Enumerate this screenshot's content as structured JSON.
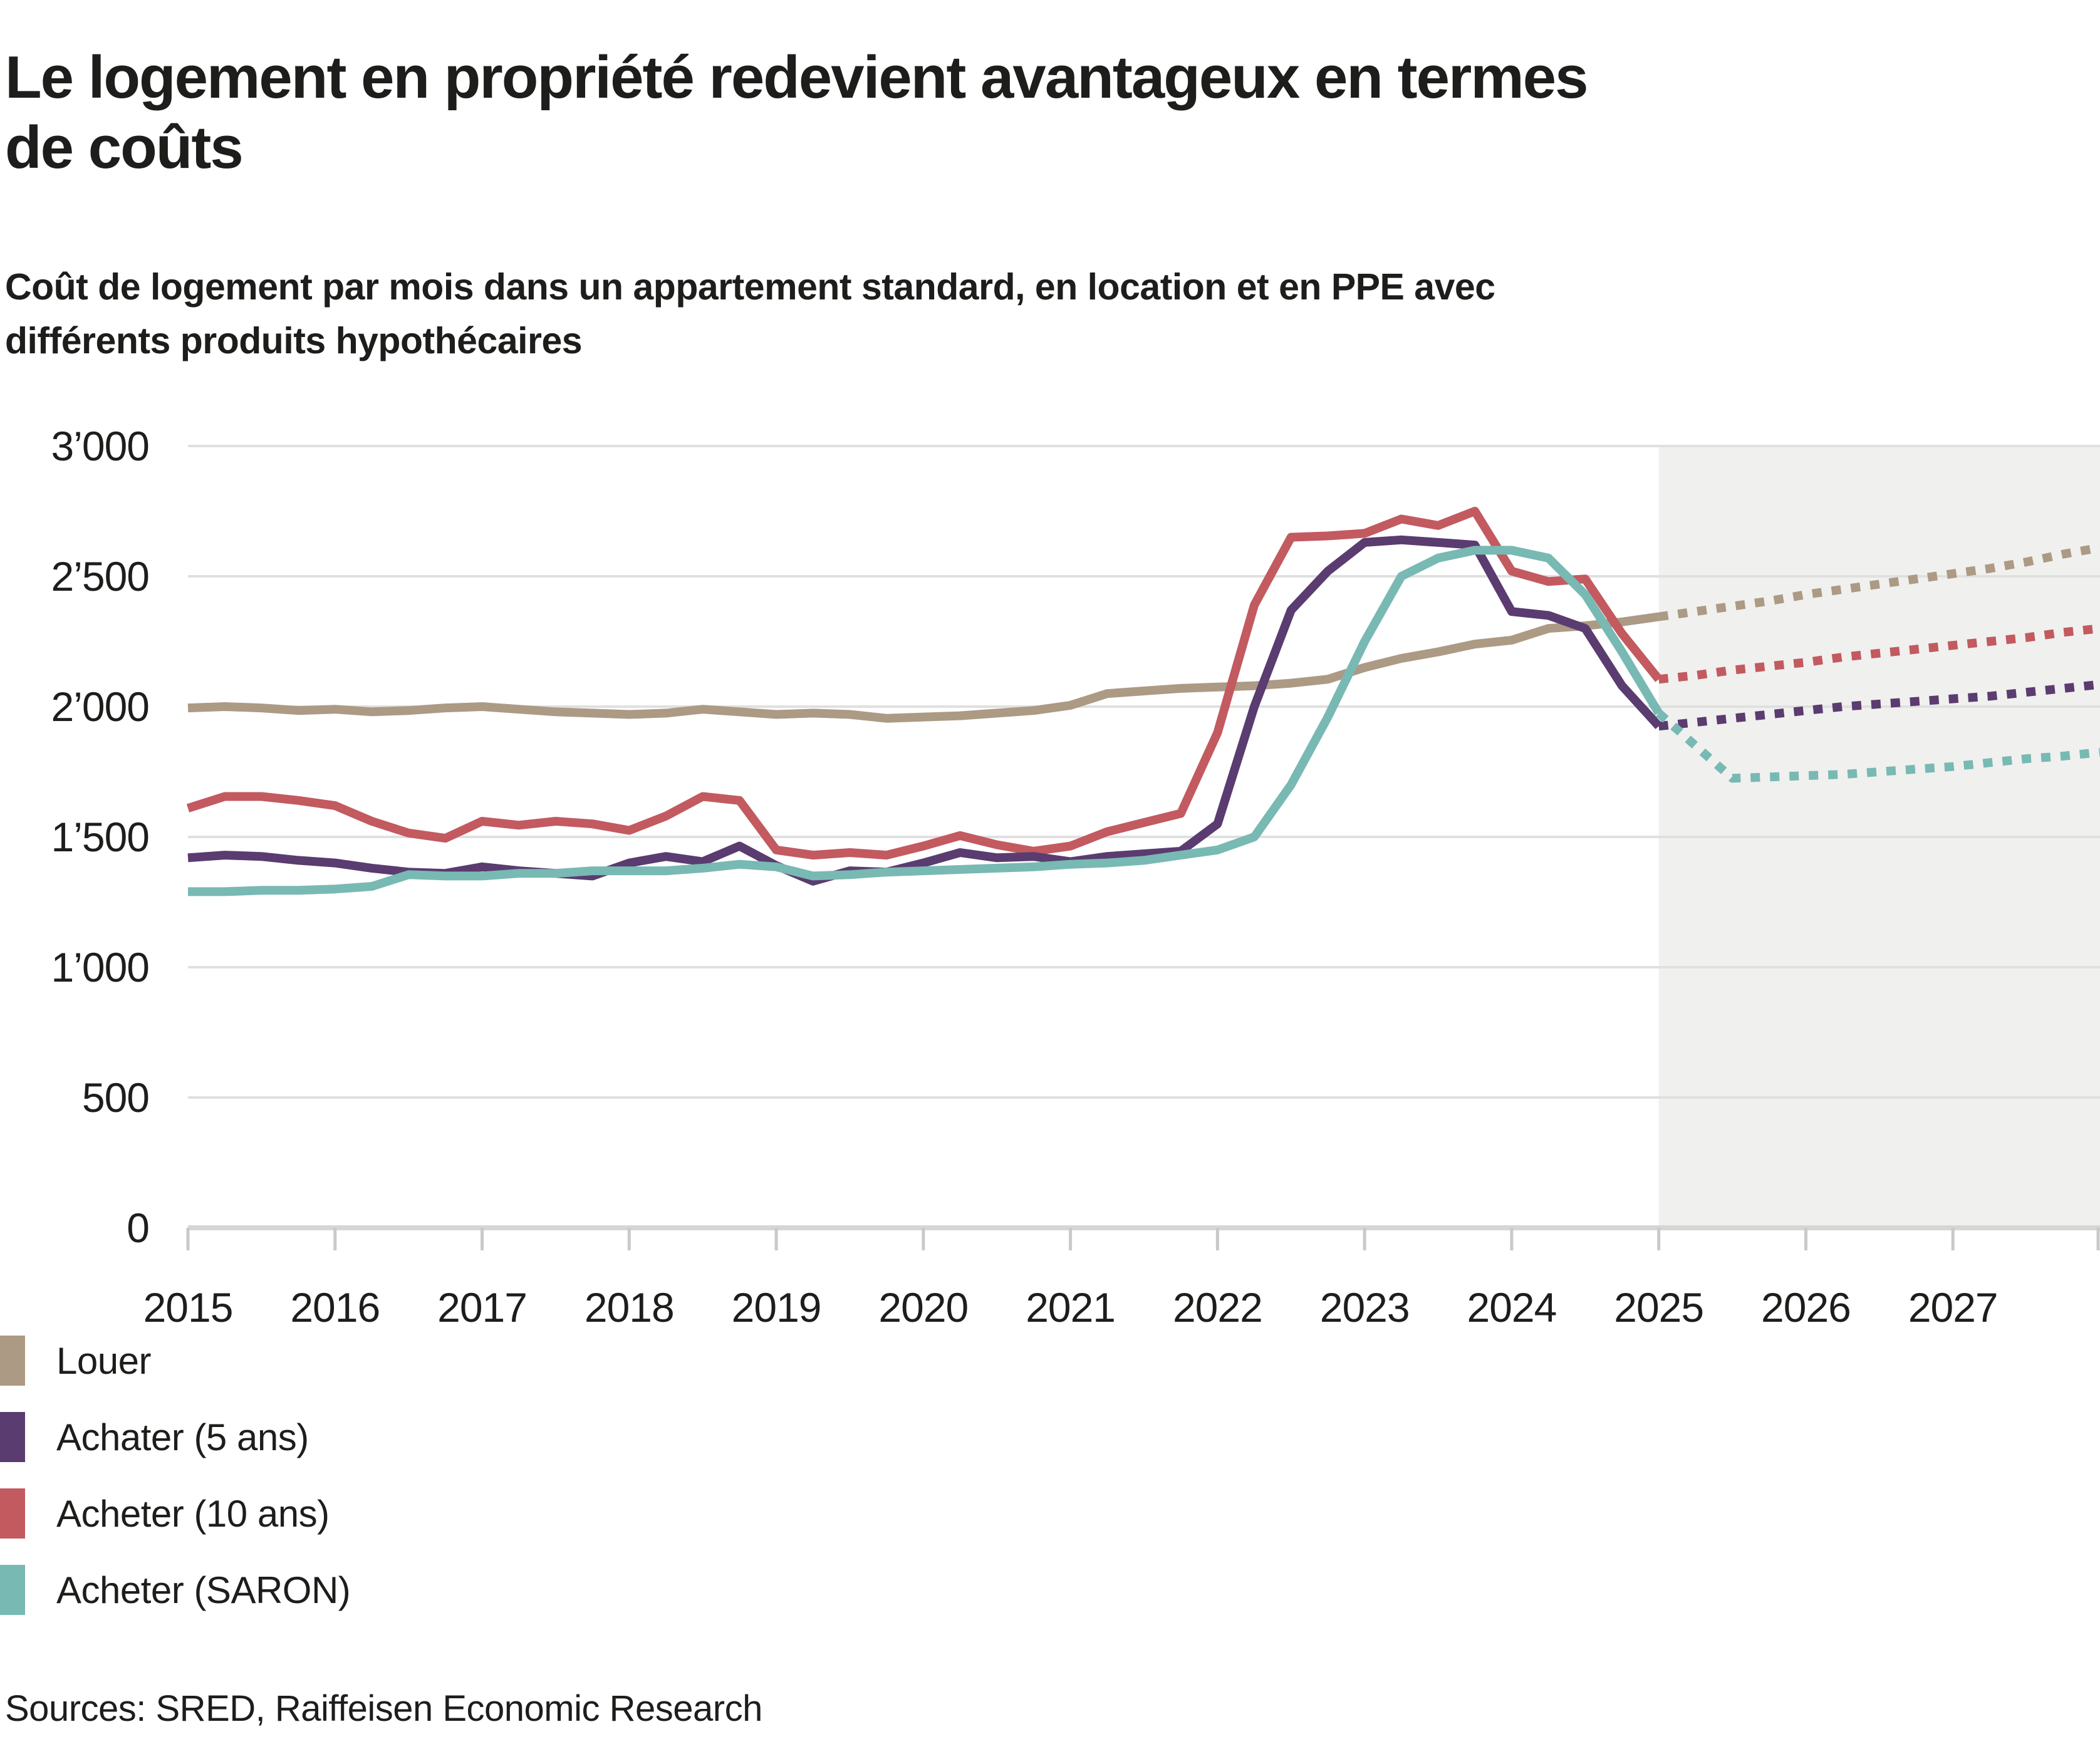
{
  "title_lines": [
    "Le logement en propriété redevient avantageux en termes",
    "de coûts"
  ],
  "title": "Le logement en propriété redevient avantageux en termes de coûts",
  "subtitle_lines": [
    "Coût de logement par mois dans un appartement standard, en location et en PPE avec",
    "différents produits hypothécaires"
  ],
  "source": "Sources: SRED, Raiffeisen Economic Research",
  "colors": {
    "background": "#ffffff",
    "band": "#f0f0ef",
    "grid": "#e0e0e0",
    "axis": "#d6d6d6",
    "tick": "#c9c9c9",
    "text": "#1d1d1b"
  },
  "chart_data": {
    "type": "line",
    "title": "Coût de logement par mois dans un appartement standard, en location et en PPE avec différents produits hypothécaires",
    "xlabel": "",
    "ylabel": "",
    "x_range": [
      2015,
      2028
    ],
    "x_step": 0.25,
    "forecast_start": 2025,
    "ylim": [
      0,
      3000
    ],
    "grid": true,
    "legend_position": "bottom-left",
    "xticks": [
      2015,
      2016,
      2017,
      2018,
      2019,
      2020,
      2021,
      2022,
      2023,
      2024,
      2025,
      2026,
      2027
    ],
    "yticks": [
      {
        "value": 0,
        "label": "0"
      },
      {
        "value": 500,
        "label": "500"
      },
      {
        "value": 1000,
        "label": "1’000"
      },
      {
        "value": 1500,
        "label": "1’500"
      },
      {
        "value": 2000,
        "label": "2’000"
      },
      {
        "value": 2500,
        "label": "2’500"
      },
      {
        "value": 3000,
        "label": "3’000"
      }
    ],
    "series": [
      {
        "id": "louer",
        "name": "Louer",
        "color": "#ac9a84",
        "values": [
          1995,
          2000,
          1995,
          1985,
          1990,
          1980,
          1985,
          1995,
          2000,
          1990,
          1980,
          1975,
          1970,
          1975,
          1990,
          1980,
          1970,
          1975,
          1970,
          1955,
          1960,
          1965,
          1975,
          1985,
          2005,
          2050,
          2060,
          2070,
          2075,
          2080,
          2090,
          2105,
          2150,
          2185,
          2210,
          2240,
          2255,
          2300,
          2310,
          2325,
          2345
        ],
        "forecast": [
          2365,
          2385,
          2405,
          2430,
          2450,
          2470,
          2490,
          2510,
          2530,
          2555,
          2585,
          2610
        ]
      },
      {
        "id": "achater-5-ans",
        "name": "Achater (5 ans)",
        "color": "#5a3c70",
        "values": [
          1420,
          1430,
          1425,
          1410,
          1400,
          1380,
          1365,
          1360,
          1385,
          1370,
          1360,
          1350,
          1400,
          1425,
          1405,
          1465,
          1390,
          1330,
          1370,
          1365,
          1400,
          1440,
          1420,
          1425,
          1405,
          1425,
          1435,
          1445,
          1550,
          2000,
          2370,
          2520,
          2630,
          2640,
          2630,
          2620,
          2365,
          2350,
          2300,
          2080,
          1925
        ],
        "forecast": [
          1940,
          1955,
          1970,
          1985,
          2000,
          2010,
          2020,
          2030,
          2040,
          2055,
          2070,
          2085
        ]
      },
      {
        "id": "acheter-10-ans",
        "name": "Acheter (10 ans)",
        "color": "#c25a60",
        "values": [
          1610,
          1655,
          1655,
          1640,
          1620,
          1560,
          1515,
          1495,
          1560,
          1545,
          1560,
          1550,
          1525,
          1580,
          1655,
          1640,
          1450,
          1430,
          1440,
          1430,
          1465,
          1505,
          1470,
          1445,
          1465,
          1520,
          1555,
          1590,
          1900,
          2390,
          2650,
          2655,
          2665,
          2720,
          2695,
          2750,
          2520,
          2480,
          2490,
          2280,
          2105
        ],
        "forecast": [
          2120,
          2140,
          2155,
          2170,
          2190,
          2205,
          2220,
          2235,
          2250,
          2265,
          2285,
          2300
        ]
      },
      {
        "id": "acheter-saron",
        "name": "Acheter (SARON)",
        "color": "#78b9b3",
        "values": [
          1290,
          1290,
          1295,
          1295,
          1300,
          1310,
          1355,
          1350,
          1350,
          1360,
          1360,
          1370,
          1370,
          1370,
          1380,
          1395,
          1385,
          1350,
          1355,
          1365,
          1370,
          1375,
          1380,
          1385,
          1395,
          1400,
          1410,
          1430,
          1450,
          1500,
          1700,
          1960,
          2250,
          2500,
          2570,
          2600,
          2600,
          2570,
          2430,
          2210,
          1975
        ],
        "forecast": [
          1850,
          1725,
          1730,
          1735,
          1740,
          1750,
          1760,
          1770,
          1785,
          1800,
          1810,
          1825
        ]
      }
    ]
  }
}
